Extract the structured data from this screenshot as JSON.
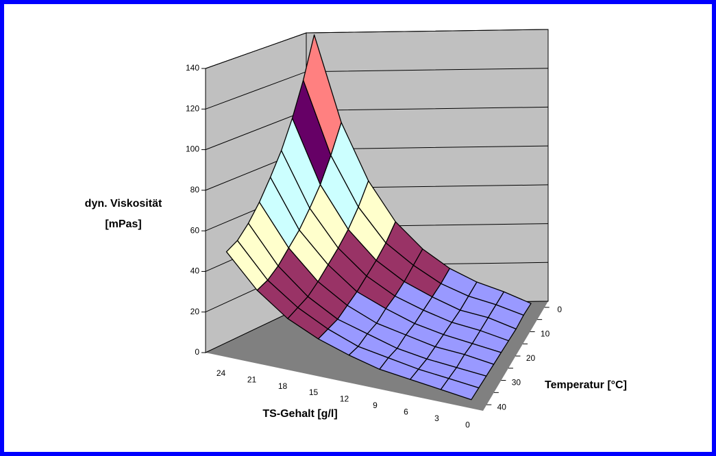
{
  "chart_data": {
    "type": "surface",
    "z_label": [
      "dyn. Viskosität",
      "[mPas]"
    ],
    "x_label": "TS-Gehalt [g/l]",
    "depth_label": "Temperatur [°C]",
    "categories": [
      24,
      21,
      18,
      15,
      12,
      9,
      6,
      3,
      0
    ],
    "depth_categories": [
      0,
      null,
      10,
      null,
      20,
      null,
      30,
      null,
      40
    ],
    "values": [
      [
        140,
        95,
        65,
        44,
        30,
        20,
        13,
        8,
        2
      ],
      [
        119,
        81,
        55,
        37,
        26,
        17,
        11,
        7,
        2
      ],
      [
        102,
        69,
        47,
        32,
        22,
        15,
        9,
        6,
        1
      ],
      [
        88,
        60,
        41,
        28,
        19,
        13,
        8,
        5,
        1
      ],
      [
        77,
        52,
        36,
        24,
        17,
        11,
        7,
        4,
        1
      ],
      [
        67,
        46,
        31,
        21,
        14,
        10,
        6,
        4,
        1
      ],
      [
        59,
        40,
        27,
        18,
        13,
        8,
        5,
        3,
        1
      ],
      [
        53,
        36,
        25,
        17,
        11,
        8,
        5,
        3,
        1
      ],
      [
        50,
        34,
        23,
        16,
        11,
        7,
        5,
        3,
        1
      ]
    ],
    "zlim": [
      0,
      140
    ],
    "zticks": [
      0,
      20,
      40,
      60,
      80,
      100,
      120,
      140
    ],
    "band_colors": [
      "#9999ff",
      "#993366",
      "#ffffcc",
      "#ccffff",
      "#660066",
      "#ff8080",
      "#0066cc"
    ],
    "wall_color": "#c0c0c0",
    "floor_color": "#808080",
    "grid": true
  }
}
